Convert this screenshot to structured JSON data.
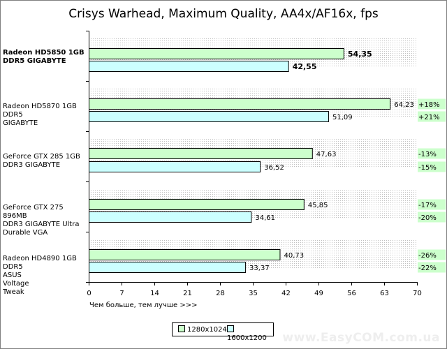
{
  "colors": {
    "series1": "#ccffcc",
    "series2": "#ccffff",
    "pct_bg": "#ccffcc",
    "grid_band": "#c0c0c0"
  },
  "chart_data": {
    "type": "bar",
    "orientation": "horizontal",
    "title": "Crisys Warhead, Maximum Quality, AA4x/AF16x, fps",
    "xlabel": "Чем больше, тем лучше >>>",
    "xlim": [
      0,
      70
    ],
    "xticks": [
      "0",
      "7",
      "14",
      "21",
      "28",
      "35",
      "42",
      "49",
      "56",
      "63",
      "70"
    ],
    "legend_placement": "bottom-center",
    "categories": [
      {
        "label": "Radeon HD5850 1GB\nDDR5 GIGABYTE",
        "bold": true
      },
      {
        "label": "Radeon HD5870 1GB DDR5\nGIGABYTE",
        "bold": false
      },
      {
        "label": "GeForce GTX 285 1GB\nDDR3 GIGABYTE",
        "bold": false
      },
      {
        "label": "GeForce GTX 275 896MB\nDDR3 GIGABYTE Ultra\nDurable VGA",
        "bold": false
      },
      {
        "label": "Radeon HD4890 1GB DDR5\nASUS\nVoltage\nTweak",
        "bold": false
      }
    ],
    "series": [
      {
        "name": "1280x1024",
        "values": [
          54.35,
          64.23,
          47.63,
          45.85,
          40.73
        ],
        "labels": [
          "54,35",
          "64,23",
          "47,63",
          "45,85",
          "40,73"
        ],
        "pct": [
          "",
          "+18%",
          "-13%",
          "-17%",
          "-26%"
        ]
      },
      {
        "name": "1600x1200",
        "values": [
          42.55,
          51.09,
          36.52,
          34.61,
          33.37
        ],
        "labels": [
          "42,55",
          "51,09",
          "36,52",
          "34,61",
          "33,37"
        ],
        "pct": [
          "",
          "+21%",
          "-15%",
          "-20%",
          "-22%"
        ]
      }
    ]
  },
  "watermark": "www.EasyCOM.com.ua"
}
